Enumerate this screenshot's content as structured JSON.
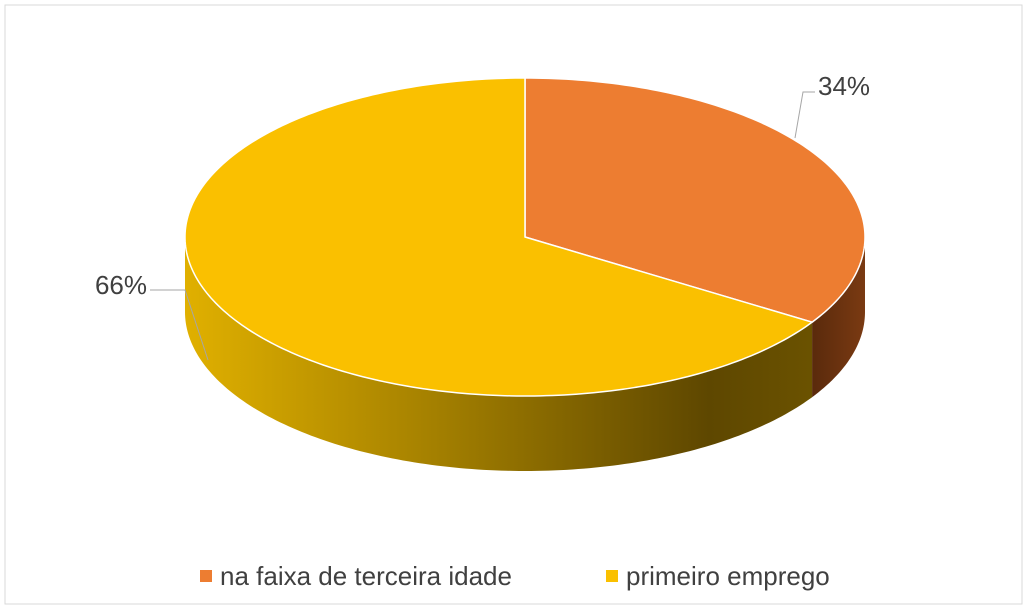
{
  "chart_data": {
    "type": "pie",
    "categories": [
      "na faixa de terceira idade",
      "primeiro emprego"
    ],
    "values": [
      34,
      66
    ],
    "value_labels": [
      "34%",
      "66%"
    ],
    "colors": [
      "#ed7d31",
      "#fac000"
    ],
    "legend": "bottom"
  }
}
